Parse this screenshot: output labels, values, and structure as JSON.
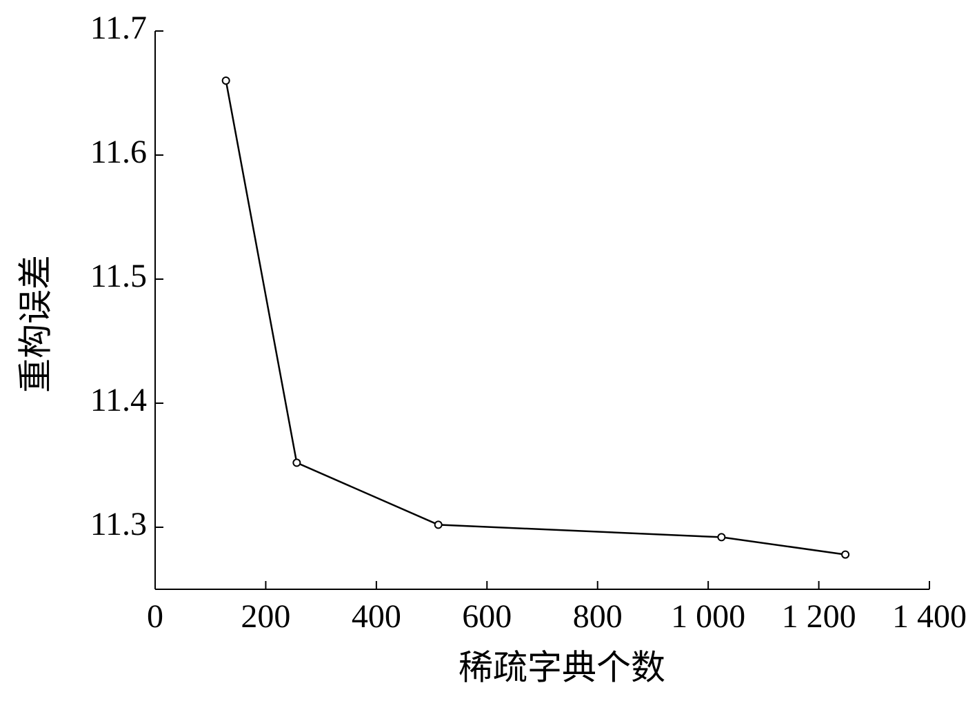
{
  "chart_data": {
    "type": "line",
    "x_label": "稀疏字典个数",
    "y_label": "重构误差",
    "x": [
      128,
      256,
      512,
      1024,
      1248
    ],
    "series": [
      {
        "color": "#000000",
        "values": [
          11.66,
          11.352,
          11.302,
          11.292,
          11.278
        ]
      }
    ],
    "xlim": [
      0,
      1400
    ],
    "xticks": [
      0,
      200,
      400,
      600,
      800,
      {
        "value": 1000,
        "label": "1 000"
      },
      {
        "value": 1200,
        "label": "1 200"
      },
      {
        "value": 1400,
        "label": "1 400"
      }
    ],
    "ylim": [
      11.25,
      11.7
    ],
    "yticks": [
      11.3,
      11.4,
      11.5,
      11.6,
      11.7
    ],
    "grid": false
  }
}
